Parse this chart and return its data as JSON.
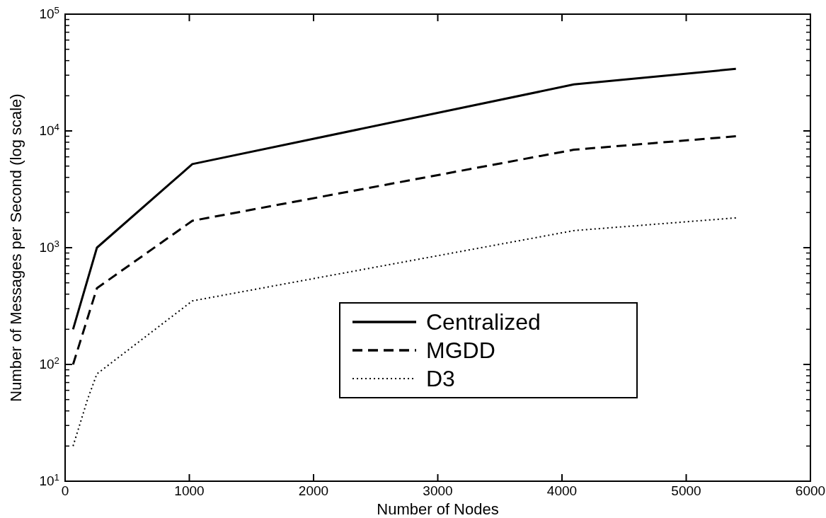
{
  "chart_data": {
    "type": "line",
    "xlabel": "Number of Nodes",
    "ylabel": "Number of Messages per Second (log scale)",
    "x": [
      64,
      256,
      1024,
      4096,
      5400
    ],
    "series": [
      {
        "name": "Centralized",
        "color": "#000000",
        "line_style": "solid",
        "values": [
          200,
          1000,
          5200,
          25000,
          34000
        ]
      },
      {
        "name": "MGDD",
        "color": "#000000",
        "line_style": "dashed",
        "values": [
          100,
          450,
          1700,
          6900,
          9000
        ]
      },
      {
        "name": "D3",
        "color": "#000000",
        "line_style": "dotted",
        "x": [
          64,
          180,
          256,
          1024,
          4096,
          5400
        ],
        "values": [
          20,
          50,
          83,
          350,
          1400,
          1800
        ]
      }
    ],
    "log": "y",
    "xlim": [
      0,
      6000
    ],
    "xticks": [
      0,
      1000,
      2000,
      3000,
      4000,
      5000,
      6000
    ],
    "ylim": [
      10,
      100000
    ],
    "yticks": [
      {
        "value": 10,
        "label": "10$^{1}$"
      },
      {
        "value": 100,
        "label": "10$^{2}$"
      },
      {
        "value": 1000,
        "label": "10$^{3}$"
      },
      {
        "value": 10000,
        "label": "10$^{4}$"
      },
      {
        "value": 100000,
        "label": "10$^{5}$"
      }
    ],
    "grid": false,
    "legend": "bottom right"
  }
}
